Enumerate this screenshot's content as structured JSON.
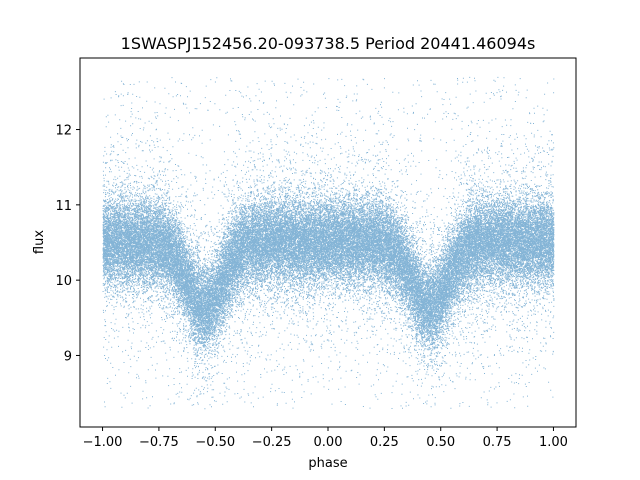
{
  "chart_data": {
    "type": "scatter",
    "title": "1SWASPJ152456.20-093738.5 Period 20441.46094s",
    "xlabel": "phase",
    "ylabel": "flux",
    "xlim": [
      -1.1,
      1.1
    ],
    "ylim": [
      8.05,
      12.95
    ],
    "x_ticks": [
      -1.0,
      -0.75,
      -0.5,
      -0.25,
      0.0,
      0.25,
      0.5,
      0.75,
      1.0
    ],
    "x_tick_labels": [
      "−1.00",
      "−0.75",
      "−0.50",
      "−0.25",
      "0.00",
      "0.25",
      "0.50",
      "0.75",
      "1.00"
    ],
    "y_ticks": [
      9,
      10,
      11,
      12
    ],
    "y_tick_labels": [
      "9",
      "10",
      "11",
      "12"
    ],
    "grid": false,
    "point_color": "#1f77b4",
    "series": [
      {
        "phase_range": [
          -1.0,
          1.0
        ],
        "baseline_flux": 10.52,
        "typical_scatter": 0.28,
        "flux_range": [
          8.3,
          12.7
        ],
        "eclipse_minima": [
          {
            "phase": -0.55,
            "flux": 9.65
          },
          {
            "phase": 0.45,
            "flux": 9.65
          }
        ],
        "eclipse_half_width": 0.17,
        "approx_points": 60000
      }
    ]
  }
}
